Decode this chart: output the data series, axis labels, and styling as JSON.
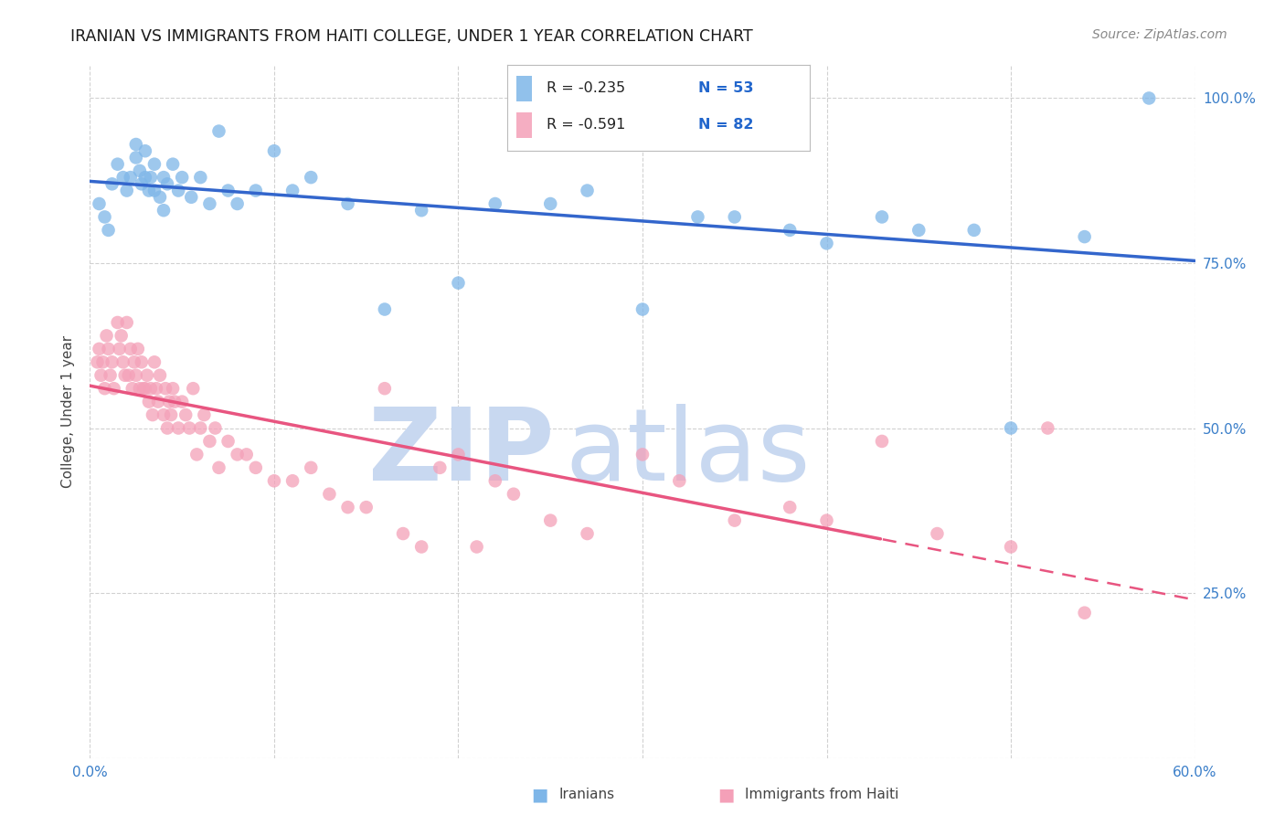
{
  "title": "IRANIAN VS IMMIGRANTS FROM HAITI COLLEGE, UNDER 1 YEAR CORRELATION CHART",
  "source": "Source: ZipAtlas.com",
  "ylabel": "College, Under 1 year",
  "x_min": 0.0,
  "x_max": 0.6,
  "y_min": 0.0,
  "y_max": 1.05,
  "x_ticks": [
    0.0,
    0.1,
    0.2,
    0.3,
    0.4,
    0.5,
    0.6
  ],
  "x_tick_labels": [
    "0.0%",
    "",
    "",
    "",
    "",
    "",
    "60.0%"
  ],
  "y_ticks": [
    0.0,
    0.25,
    0.5,
    0.75,
    1.0
  ],
  "y_tick_labels_right": [
    "",
    "25.0%",
    "50.0%",
    "75.0%",
    "100.0%"
  ],
  "grid_color": "#cccccc",
  "background_color": "#ffffff",
  "iranians_color": "#7EB6E8",
  "iranians_line_color": "#3366CC",
  "haiti_color": "#F4A0B8",
  "haiti_line_color": "#E85580",
  "watermark_zip": "ZIP",
  "watermark_atlas": "atlas",
  "watermark_color": "#C8D8F0",
  "legend_r_iranian": "R = -0.235",
  "legend_n_iranian": "N = 53",
  "legend_r_haiti": "R = -0.591",
  "legend_n_haiti": "N = 82",
  "iranians_x": [
    0.005,
    0.008,
    0.01,
    0.012,
    0.015,
    0.018,
    0.02,
    0.022,
    0.025,
    0.025,
    0.027,
    0.028,
    0.03,
    0.03,
    0.032,
    0.033,
    0.035,
    0.035,
    0.038,
    0.04,
    0.04,
    0.042,
    0.045,
    0.048,
    0.05,
    0.055,
    0.06,
    0.065,
    0.07,
    0.075,
    0.08,
    0.09,
    0.1,
    0.11,
    0.12,
    0.14,
    0.16,
    0.18,
    0.2,
    0.22,
    0.25,
    0.27,
    0.3,
    0.33,
    0.35,
    0.38,
    0.4,
    0.43,
    0.45,
    0.48,
    0.5,
    0.54,
    0.575
  ],
  "iranians_y": [
    0.84,
    0.82,
    0.8,
    0.87,
    0.9,
    0.88,
    0.86,
    0.88,
    0.93,
    0.91,
    0.89,
    0.87,
    0.92,
    0.88,
    0.86,
    0.88,
    0.9,
    0.86,
    0.85,
    0.88,
    0.83,
    0.87,
    0.9,
    0.86,
    0.88,
    0.85,
    0.88,
    0.84,
    0.95,
    0.86,
    0.84,
    0.86,
    0.92,
    0.86,
    0.88,
    0.84,
    0.68,
    0.83,
    0.72,
    0.84,
    0.84,
    0.86,
    0.68,
    0.82,
    0.82,
    0.8,
    0.78,
    0.82,
    0.8,
    0.8,
    0.5,
    0.79,
    1.0
  ],
  "haiti_x": [
    0.004,
    0.005,
    0.006,
    0.007,
    0.008,
    0.009,
    0.01,
    0.011,
    0.012,
    0.013,
    0.015,
    0.016,
    0.017,
    0.018,
    0.019,
    0.02,
    0.021,
    0.022,
    0.023,
    0.024,
    0.025,
    0.026,
    0.027,
    0.028,
    0.029,
    0.03,
    0.031,
    0.032,
    0.033,
    0.034,
    0.035,
    0.036,
    0.037,
    0.038,
    0.04,
    0.041,
    0.042,
    0.043,
    0.044,
    0.045,
    0.046,
    0.048,
    0.05,
    0.052,
    0.054,
    0.056,
    0.058,
    0.06,
    0.062,
    0.065,
    0.068,
    0.07,
    0.075,
    0.08,
    0.085,
    0.09,
    0.1,
    0.11,
    0.12,
    0.13,
    0.14,
    0.15,
    0.16,
    0.17,
    0.18,
    0.19,
    0.2,
    0.21,
    0.22,
    0.23,
    0.25,
    0.27,
    0.3,
    0.32,
    0.35,
    0.38,
    0.4,
    0.43,
    0.46,
    0.5,
    0.52,
    0.54
  ],
  "haiti_y": [
    0.6,
    0.62,
    0.58,
    0.6,
    0.56,
    0.64,
    0.62,
    0.58,
    0.6,
    0.56,
    0.66,
    0.62,
    0.64,
    0.6,
    0.58,
    0.66,
    0.58,
    0.62,
    0.56,
    0.6,
    0.58,
    0.62,
    0.56,
    0.6,
    0.56,
    0.56,
    0.58,
    0.54,
    0.56,
    0.52,
    0.6,
    0.56,
    0.54,
    0.58,
    0.52,
    0.56,
    0.5,
    0.54,
    0.52,
    0.56,
    0.54,
    0.5,
    0.54,
    0.52,
    0.5,
    0.56,
    0.46,
    0.5,
    0.52,
    0.48,
    0.5,
    0.44,
    0.48,
    0.46,
    0.46,
    0.44,
    0.42,
    0.42,
    0.44,
    0.4,
    0.38,
    0.38,
    0.56,
    0.34,
    0.32,
    0.44,
    0.46,
    0.32,
    0.42,
    0.4,
    0.36,
    0.34,
    0.46,
    0.42,
    0.36,
    0.38,
    0.36,
    0.48,
    0.34,
    0.32,
    0.5,
    0.22
  ]
}
